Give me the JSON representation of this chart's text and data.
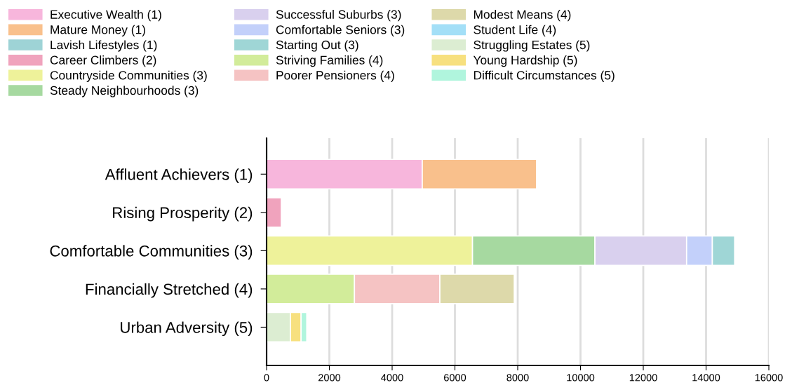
{
  "chart_data": {
    "type": "bar",
    "orientation": "horizontal",
    "stacked": true,
    "categories": [
      "Affluent Achievers (1)",
      "Rising Prosperity (2)",
      "Comfortable Communities (3)",
      "Financially Stretched (4)",
      "Urban Adversity (5)"
    ],
    "series": [
      {
        "name": "Executive Wealth (1)",
        "color": "#f7b6dc",
        "values": [
          4960,
          null,
          null,
          null,
          null
        ]
      },
      {
        "name": "Mature Money (1)",
        "color": "#f9c08c",
        "values": [
          3640,
          null,
          null,
          null,
          null
        ]
      },
      {
        "name": "Lavish Lifestyles (1)",
        "color": "#9ed3d6",
        "values": [
          null,
          null,
          null,
          null,
          null
        ]
      },
      {
        "name": "Career Climbers (2)",
        "color": "#f0a3bd",
        "values": [
          null,
          470,
          null,
          null,
          null
        ]
      },
      {
        "name": "Countryside Communities (3)",
        "color": "#eef29a",
        "values": [
          null,
          null,
          6560,
          null,
          null
        ]
      },
      {
        "name": "Steady Neighbourhoods (3)",
        "color": "#a6d9a0",
        "values": [
          null,
          null,
          3900,
          null,
          null
        ]
      },
      {
        "name": "Successful Suburbs (3)",
        "color": "#d9d0ee",
        "values": [
          null,
          null,
          2920,
          null,
          null
        ]
      },
      {
        "name": "Comfortable Seniors (3)",
        "color": "#c3d0fa",
        "values": [
          null,
          null,
          820,
          null,
          null
        ]
      },
      {
        "name": "Starting Out (3)",
        "color": "#9fd6d6",
        "values": [
          null,
          null,
          710,
          null,
          null
        ]
      },
      {
        "name": "Striving Families (4)",
        "color": "#d2ec9a",
        "values": [
          null,
          null,
          null,
          2800,
          null
        ]
      },
      {
        "name": "Poorer Pensioners (4)",
        "color": "#f5c3c3",
        "values": [
          null,
          null,
          null,
          2720,
          null
        ]
      },
      {
        "name": "Modest Means (4)",
        "color": "#ddd9aa",
        "values": [
          null,
          null,
          null,
          2370,
          null
        ]
      },
      {
        "name": "Student Life (4)",
        "color": "#a3dff7",
        "values": [
          null,
          null,
          null,
          null,
          null
        ]
      },
      {
        "name": "Struggling Estates (5)",
        "color": "#dcedd2",
        "values": [
          null,
          null,
          null,
          null,
          760
        ]
      },
      {
        "name": "Young Hardship (5)",
        "color": "#f7e07f",
        "values": [
          null,
          null,
          null,
          null,
          340
        ]
      },
      {
        "name": "Difficult Circumstances (5)",
        "color": "#b0f5dd",
        "values": [
          null,
          null,
          null,
          null,
          180
        ]
      }
    ],
    "xlim": [
      0,
      16000
    ],
    "xticks": [
      0,
      2000,
      4000,
      6000,
      8000,
      10000,
      12000,
      14000,
      16000
    ],
    "grid": "x",
    "legend": "top left"
  }
}
